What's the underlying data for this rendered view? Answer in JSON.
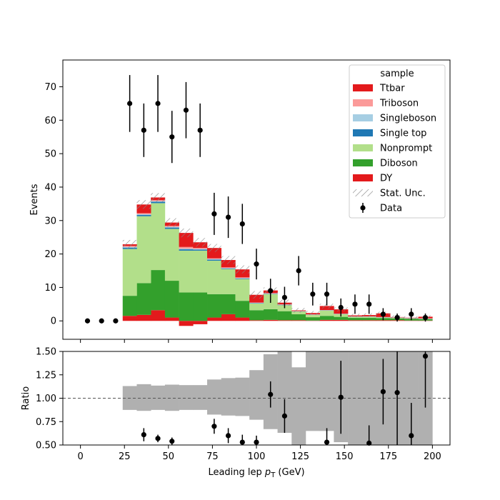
{
  "chart_data": {
    "type": "bar",
    "subtype": "stacked-histogram-with-ratio",
    "title": "",
    "xlabel": "Leading lep p_T (GeV)",
    "xlabel_parts": {
      "pre": "Leading lep ",
      "sym": "p",
      "sub": "T",
      "post": " (GeV)"
    },
    "ylabel": "Events",
    "ratio_ylabel": "Ratio",
    "xlim": [
      -10,
      210
    ],
    "ylim": [
      -5.5,
      78
    ],
    "ratio_ylim": [
      0.5,
      1.5
    ],
    "xticks": [
      "0",
      "25",
      "50",
      "75",
      "100",
      "125",
      "150",
      "175",
      "200"
    ],
    "yticks": [
      "0",
      "10",
      "20",
      "30",
      "40",
      "50",
      "60",
      "70"
    ],
    "ratio_yticks": [
      "0.50",
      "0.75",
      "1.00",
      "1.25",
      "1.50"
    ],
    "bin_edges": [
      24,
      32,
      40,
      48,
      56,
      64,
      72,
      80,
      88,
      96,
      104,
      112,
      120,
      128,
      136,
      144,
      152,
      160,
      168,
      176,
      184,
      192,
      200
    ],
    "legend": {
      "title": "sample",
      "position": "top-right",
      "entries": [
        "Ttbar",
        "Triboson",
        "Singleboson",
        "Single top",
        "Nonprompt",
        "Diboson",
        "DY",
        "Stat. Unc.",
        "Data"
      ]
    },
    "series": [
      {
        "name": "DY",
        "color": "#e31a1c",
        "values": [
          1.5,
          1.8,
          3.2,
          1.0,
          -1.5,
          -1.0,
          1.0,
          2.0,
          1.0,
          0.2,
          0.3,
          0.2,
          0.2,
          0.1,
          0.3,
          0.3,
          0.2,
          0.2,
          0.2,
          0.2,
          0.1,
          0.1
        ]
      },
      {
        "name": "Diboson",
        "color": "#33a02c",
        "values": [
          6.0,
          9.5,
          12.0,
          11.0,
          8.5,
          8.5,
          7.0,
          6.0,
          5.0,
          3.0,
          3.2,
          2.7,
          1.8,
          1.0,
          1.2,
          0.9,
          0.7,
          0.7,
          0.6,
          0.5,
          0.5,
          0.4
        ]
      },
      {
        "name": "Nonprompt",
        "color": "#b2df8a",
        "values": [
          14.0,
          20.0,
          20.0,
          15.5,
          12.5,
          12.5,
          10.0,
          7.5,
          6.5,
          2.0,
          4.5,
          1.8,
          0.8,
          0.7,
          1.6,
          0.8,
          0.3,
          0.3,
          0.2,
          0.2,
          0.1,
          0.1
        ]
      },
      {
        "name": "Single top",
        "color": "#1f78b4",
        "values": [
          0.4,
          0.4,
          0.4,
          0.4,
          0.4,
          0.3,
          0.3,
          0.2,
          0.2,
          0.1,
          0.1,
          0.1,
          0.05,
          0.05,
          0.05,
          0.05,
          0.05,
          0.05,
          0.05,
          0.05,
          0.05,
          0.05
        ]
      },
      {
        "name": "Singleboson",
        "color": "#a6cee3",
        "values": [
          0.2,
          0.2,
          0.2,
          0.2,
          0.2,
          0.2,
          0.2,
          0.1,
          0.1,
          0.1,
          0.1,
          0.05,
          0.05,
          0.05,
          0.05,
          0.05,
          0.05,
          0.05,
          0.05,
          0.05,
          0.05,
          0.05
        ]
      },
      {
        "name": "Triboson",
        "color": "#fb9a99",
        "values": [
          0.3,
          0.3,
          0.3,
          0.3,
          0.5,
          0.3,
          0.2,
          0.2,
          0.2,
          0.1,
          0.1,
          0.1,
          0.05,
          0.05,
          0.05,
          0.05,
          0.05,
          0.05,
          0.05,
          0.05,
          0.05,
          0.05
        ]
      },
      {
        "name": "Ttbar",
        "color": "#e31a1c",
        "values": [
          0.5,
          2.6,
          0.8,
          1.0,
          4.2,
          1.7,
          3.1,
          2.2,
          2.4,
          2.3,
          0.8,
          0.5,
          0.2,
          0.4,
          1.2,
          1.3,
          0.3,
          0.4,
          1.1,
          0.1,
          0.1,
          0.5
        ]
      }
    ],
    "stat_unc": [
      1.3,
      1.3,
      1.3,
      1.3,
      1.3,
      1.3,
      1.2,
      1.2,
      1.2,
      1.1,
      0.9,
      0.9,
      0.7,
      0.6,
      0.7,
      0.6,
      0.5,
      0.5,
      0.5,
      0.5,
      0.4,
      0.4
    ],
    "ratio_band": [
      [
        0.875,
        1.13
      ],
      [
        0.865,
        1.15
      ],
      [
        0.875,
        1.135
      ],
      [
        0.865,
        1.145
      ],
      [
        0.875,
        1.14
      ],
      [
        0.875,
        1.14
      ],
      [
        0.825,
        1.2
      ],
      [
        0.815,
        1.215
      ],
      [
        0.81,
        1.22
      ],
      [
        0.77,
        1.3
      ],
      [
        0.67,
        1.47
      ],
      [
        0.63,
        1.5
      ],
      [
        0.5,
        1.33
      ],
      [
        0.65,
        1.5
      ],
      [
        0.65,
        1.5
      ],
      [
        0.53,
        1.5
      ],
      [
        0.5,
        1.5
      ],
      [
        0.5,
        1.5
      ],
      [
        0.5,
        1.5
      ],
      [
        0.5,
        1.5
      ],
      [
        0.5,
        1.5
      ],
      [
        0.5,
        1.5
      ]
    ],
    "data": {
      "name": "Data",
      "points": [
        {
          "x": 4,
          "y": 0,
          "err": 0
        },
        {
          "x": 12,
          "y": 0,
          "err": 0
        },
        {
          "x": 20,
          "y": 0,
          "err": 0
        },
        {
          "x": 28,
          "y": 65,
          "err": 8.5
        },
        {
          "x": 36,
          "y": 57,
          "err": 8.0
        },
        {
          "x": 44,
          "y": 65,
          "err": 8.5
        },
        {
          "x": 52,
          "y": 55,
          "err": 7.8
        },
        {
          "x": 60,
          "y": 63,
          "err": 8.4
        },
        {
          "x": 68,
          "y": 57,
          "err": 8.0
        },
        {
          "x": 76,
          "y": 32,
          "err": 6.3
        },
        {
          "x": 84,
          "y": 31,
          "err": 6.2
        },
        {
          "x": 92,
          "y": 29,
          "err": 6.0
        },
        {
          "x": 100,
          "y": 17,
          "err": 4.6
        },
        {
          "x": 108,
          "y": 9,
          "err": 3.6
        },
        {
          "x": 116,
          "y": 7,
          "err": 3.2
        },
        {
          "x": 124,
          "y": 15,
          "err": 4.4
        },
        {
          "x": 132,
          "y": 8,
          "err": 3.4
        },
        {
          "x": 140,
          "y": 8,
          "err": 3.4
        },
        {
          "x": 148,
          "y": 4,
          "err": 2.7
        },
        {
          "x": 156,
          "y": 5,
          "err": 2.9
        },
        {
          "x": 164,
          "y": 5,
          "err": 2.9
        },
        {
          "x": 172,
          "y": 2,
          "err": 1.8
        },
        {
          "x": 180,
          "y": 1,
          "err": 1.2
        },
        {
          "x": 188,
          "y": 2,
          "err": 1.8
        },
        {
          "x": 196,
          "y": 1,
          "err": 1.2
        }
      ]
    },
    "ratio_points": [
      {
        "x": 36,
        "y": 0.61,
        "err": 0.07
      },
      {
        "x": 44,
        "y": 0.57,
        "err": 0.04
      },
      {
        "x": 52,
        "y": 0.54,
        "err": 0.04
      },
      {
        "x": 76,
        "y": 0.7,
        "err": 0.08
      },
      {
        "x": 84,
        "y": 0.6,
        "err": 0.08
      },
      {
        "x": 92,
        "y": 0.53,
        "err": 0.08
      },
      {
        "x": 100,
        "y": 0.53,
        "err": 0.07
      },
      {
        "x": 108,
        "y": 1.04,
        "err": 0.14
      },
      {
        "x": 116,
        "y": 0.81,
        "err": 0.18
      },
      {
        "x": 140,
        "y": 0.53,
        "err": 0.15
      },
      {
        "x": 148,
        "y": 1.01,
        "err": 0.39
      },
      {
        "x": 164,
        "y": 0.52,
        "err": 0.19
      },
      {
        "x": 172,
        "y": 1.07,
        "err": 0.35
      },
      {
        "x": 180,
        "y": 1.06,
        "err": 0.58
      },
      {
        "x": 188,
        "y": 0.6,
        "err": 0.35
      },
      {
        "x": 196,
        "y": 1.45,
        "err": 0.55
      }
    ],
    "ratio_reference": 1.0
  }
}
